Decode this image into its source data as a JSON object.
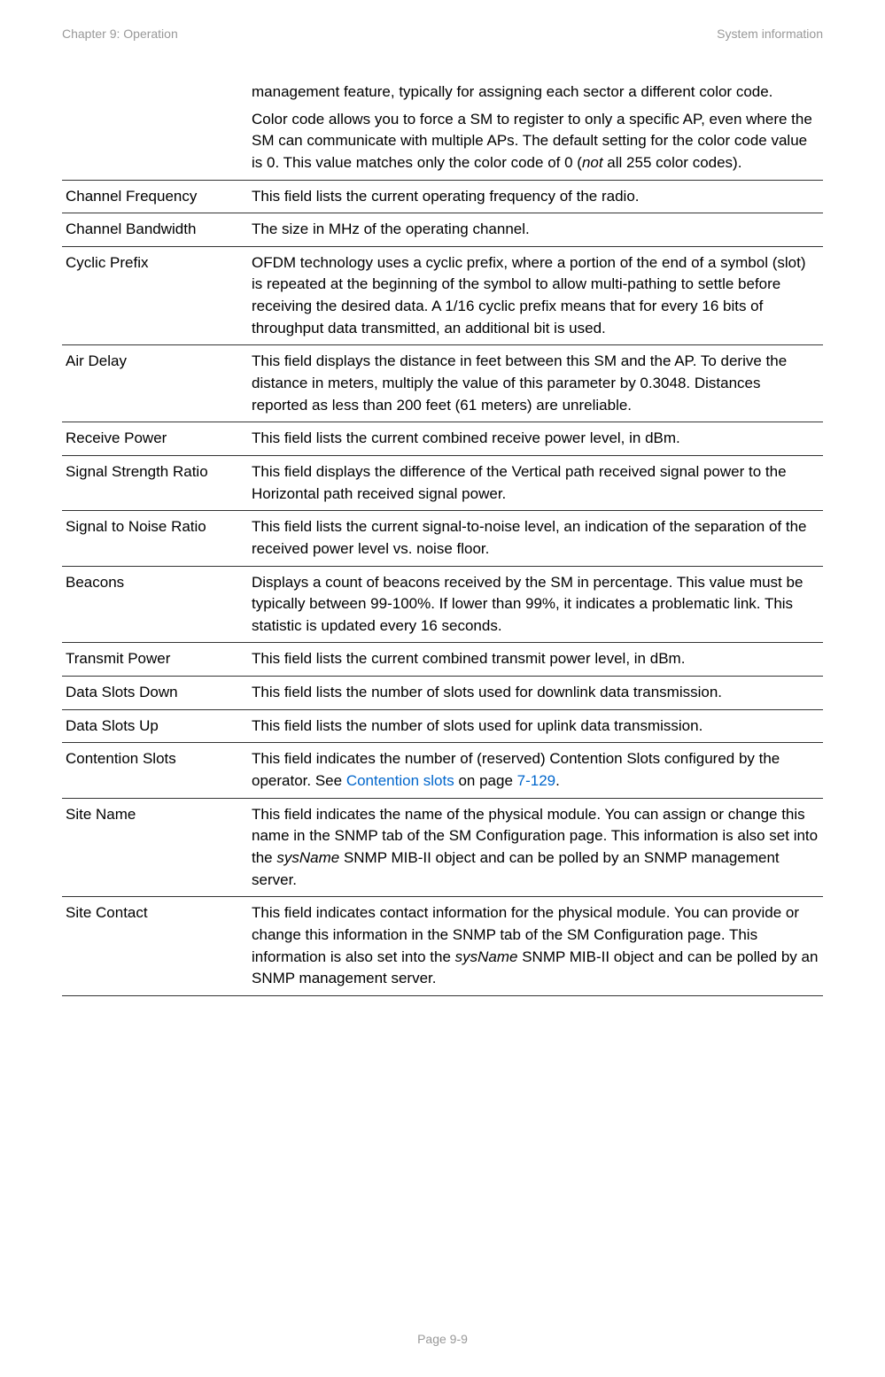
{
  "page": {
    "headerLeft": "Chapter 9:  Operation",
    "headerRight": "System information",
    "footer": "Page 9-9"
  },
  "rows": [
    {
      "attr": "",
      "desc_parts": [
        {
          "text": "management feature, typically for assigning each sector a different color code."
        }
      ],
      "desc_parts2": [
        {
          "text": "Color code allows you to force a SM to register to only a specific AP, even where the SM can communicate with multiple APs. The default setting for the color code value is 0. This value matches only the color code of 0 ("
        },
        {
          "text": "not",
          "style": "italic"
        },
        {
          "text": " all 255 color codes)."
        }
      ]
    },
    {
      "attr": "Channel Frequency",
      "desc_parts": [
        {
          "text": "This field lists the current operating frequency of the radio."
        }
      ]
    },
    {
      "attr": "Channel Bandwidth",
      "desc_parts": [
        {
          "text": "The size in MHz of the operating channel."
        }
      ]
    },
    {
      "attr": "Cyclic Prefix",
      "desc_parts": [
        {
          "text": "OFDM technology uses a cyclic prefix, where a portion of the end of a symbol (slot) is repeated at the beginning of the symbol to allow multi-pathing to settle before receiving the desired data.  A 1/16 cyclic prefix means that for every 16 bits of throughput data transmitted, an additional bit is used."
        }
      ]
    },
    {
      "attr": "Air Delay",
      "desc_parts": [
        {
          "text": "This field displays the distance in feet between this SM and the AP. To derive the distance in meters, multiply the value of this parameter by 0.3048. Distances reported as less than 200 feet (61 meters) are unreliable."
        }
      ]
    },
    {
      "attr": "Receive Power",
      "desc_parts": [
        {
          "text": "This field lists the current combined receive power level, in dBm."
        }
      ]
    },
    {
      "attr": "Signal Strength Ratio",
      "desc_parts": [
        {
          "text": "This field displays the difference of the Vertical path received signal power to the Horizontal path received signal power."
        }
      ]
    },
    {
      "attr": "Signal to Noise Ratio",
      "desc_parts": [
        {
          "text": "This field lists the current signal-to-noise level, an indication of the separation of the received power level vs. noise floor."
        }
      ]
    },
    {
      "attr": "Beacons",
      "desc_parts": [
        {
          "text": "Displays a count of beacons received by the SM in percentage. This value must be typically between 99-100%. If lower than 99%, it indicates a problematic link. This statistic is updated every 16 seconds."
        }
      ]
    },
    {
      "attr": "Transmit Power",
      "desc_parts": [
        {
          "text": "This field lists the current combined transmit power level, in dBm."
        }
      ]
    },
    {
      "attr": "Data Slots Down",
      "desc_parts": [
        {
          "text": "This field lists the number of slots used for downlink data transmission."
        }
      ]
    },
    {
      "attr": "Data Slots Up",
      "desc_parts": [
        {
          "text": "This field lists the number of slots used for uplink data transmission."
        }
      ]
    },
    {
      "attr": "Contention Slots",
      "desc_parts": [
        {
          "text": "This field indicates the number of (reserved) Contention Slots configured by the operator. See "
        },
        {
          "text": "Contention slots",
          "style": "link"
        },
        {
          "text": " on page "
        },
        {
          "text": "7-129",
          "style": "link"
        },
        {
          "text": "."
        }
      ]
    },
    {
      "attr": "Site Name",
      "desc_parts": [
        {
          "text": "This field indicates the name of the physical module. You can assign or change this name in the SNMP tab of the SM Configuration page. This information is also set into the "
        },
        {
          "text": "sysName",
          "style": "italic"
        },
        {
          "text": " SNMP MIB-II object and can be polled by an SNMP management server."
        }
      ]
    },
    {
      "attr": "Site Contact",
      "desc_parts": [
        {
          "text": "This field indicates contact information for the physical module. You can provide or change this information in the SNMP tab of the SM Configuration page. This information is also set into the "
        },
        {
          "text": "sysName",
          "style": "italic"
        },
        {
          "text": " SNMP MIB-II object and can be polled by an SNMP management server."
        }
      ]
    }
  ]
}
